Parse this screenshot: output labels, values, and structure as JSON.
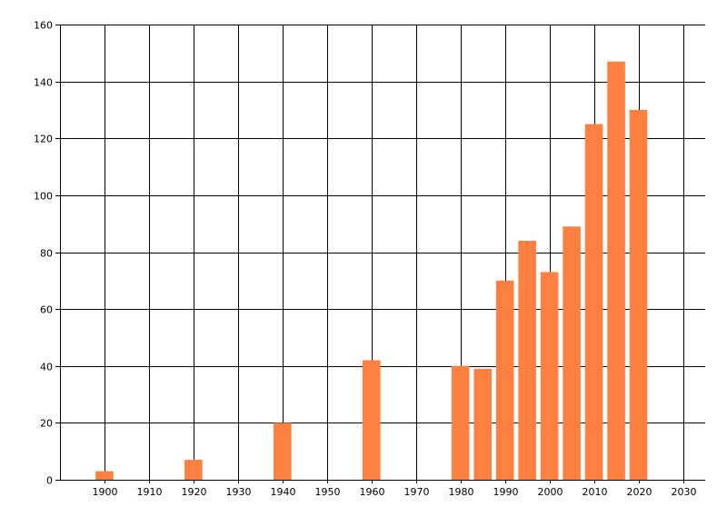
{
  "chart_data": {
    "type": "bar",
    "title": "",
    "xlabel": "",
    "ylabel": "",
    "x": [
      1900,
      1920,
      1940,
      1960,
      1980,
      1985,
      1990,
      1995,
      2000,
      2005,
      2010,
      2015,
      2020
    ],
    "values": [
      3,
      7,
      20,
      42,
      40,
      39,
      70,
      84,
      73,
      89,
      125,
      147,
      130
    ],
    "xlim": [
      1890,
      2035
    ],
    "ylim": [
      0,
      160
    ],
    "xticks": [
      1900,
      1910,
      1920,
      1930,
      1940,
      1950,
      1960,
      1970,
      1980,
      1990,
      2000,
      2010,
      2020,
      2030
    ],
    "yticks": [
      0,
      20,
      40,
      60,
      80,
      100,
      120,
      140,
      160
    ],
    "grid": true,
    "bar_color": "#FF8040",
    "grid_color": "#000000"
  }
}
